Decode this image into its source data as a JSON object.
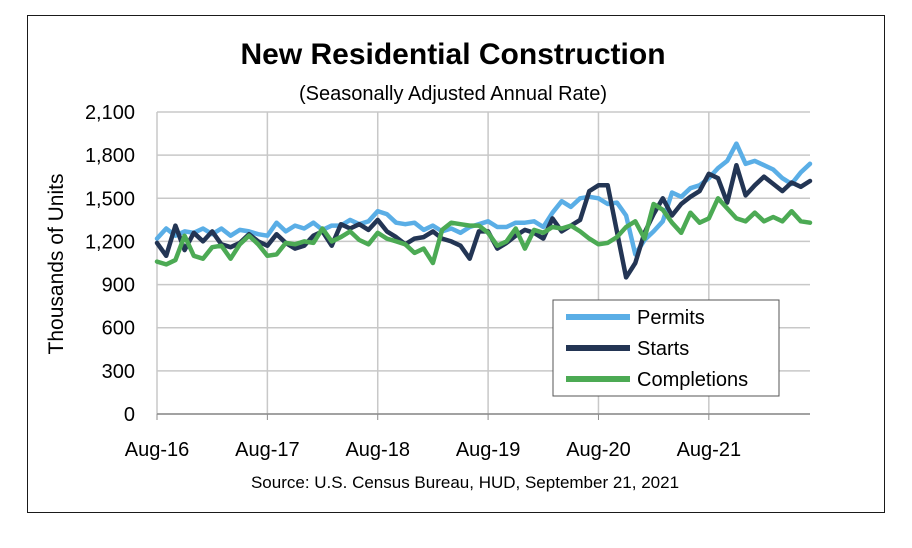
{
  "chart_data": {
    "type": "line",
    "title": "New Residential Construction",
    "subtitle": "(Seasonally Adjusted Annual Rate)",
    "ylabel": "Thousands of Units",
    "source": "Source:  U.S. Census Bureau, HUD, September 21, 2021",
    "ylim": [
      0,
      2100
    ],
    "yticks": [
      0,
      300,
      600,
      900,
      1200,
      1500,
      1800,
      2100
    ],
    "ytick_labels": [
      "0",
      "300",
      "600",
      "900",
      "1,200",
      "1,500",
      "1,800",
      "2,100"
    ],
    "xtick_labels": [
      "Aug-16",
      "Aug-17",
      "Aug-18",
      "Aug-19",
      "Aug-20",
      "Aug-21"
    ],
    "grid": true,
    "legend_position": "bottom-right",
    "series": [
      {
        "name": "Permits",
        "color": "#5aaee6",
        "values": [
          1220,
          1290,
          1240,
          1270,
          1260,
          1290,
          1250,
          1290,
          1240,
          1280,
          1270,
          1250,
          1240,
          1330,
          1270,
          1310,
          1290,
          1330,
          1280,
          1310,
          1310,
          1350,
          1320,
          1340,
          1410,
          1390,
          1330,
          1320,
          1330,
          1280,
          1310,
          1270,
          1290,
          1260,
          1300,
          1320,
          1340,
          1300,
          1300,
          1330,
          1330,
          1340,
          1300,
          1400,
          1480,
          1440,
          1500,
          1510,
          1500,
          1460,
          1470,
          1380,
          1110,
          1210,
          1270,
          1340,
          1540,
          1510,
          1570,
          1590,
          1640,
          1710,
          1760,
          1880,
          1740,
          1760,
          1730,
          1700,
          1640,
          1600,
          1680,
          1740
        ]
      },
      {
        "name": "Starts",
        "color": "#233554",
        "values": [
          1190,
          1100,
          1310,
          1140,
          1260,
          1200,
          1270,
          1180,
          1160,
          1190,
          1250,
          1200,
          1170,
          1250,
          1190,
          1150,
          1170,
          1240,
          1270,
          1170,
          1320,
          1290,
          1320,
          1280,
          1350,
          1270,
          1230,
          1180,
          1220,
          1230,
          1270,
          1220,
          1200,
          1170,
          1080,
          1270,
          1270,
          1150,
          1190,
          1240,
          1280,
          1260,
          1220,
          1360,
          1270,
          1310,
          1350,
          1550,
          1590,
          1590,
          1270,
          950,
          1050,
          1260,
          1390,
          1500,
          1380,
          1460,
          1510,
          1550,
          1670,
          1640,
          1470,
          1730,
          1520,
          1590,
          1650,
          1600,
          1550,
          1610,
          1580,
          1620
        ]
      },
      {
        "name": "Completions",
        "color": "#4caa54",
        "values": [
          1060,
          1040,
          1070,
          1240,
          1100,
          1080,
          1160,
          1170,
          1080,
          1180,
          1240,
          1180,
          1100,
          1110,
          1190,
          1180,
          1200,
          1190,
          1290,
          1200,
          1230,
          1270,
          1210,
          1180,
          1260,
          1220,
          1200,
          1180,
          1120,
          1150,
          1050,
          1280,
          1330,
          1320,
          1310,
          1310,
          1260,
          1170,
          1200,
          1290,
          1150,
          1280,
          1260,
          1300,
          1290,
          1310,
          1270,
          1220,
          1180,
          1190,
          1230,
          1300,
          1340,
          1220,
          1460,
          1420,
          1330,
          1260,
          1400,
          1330,
          1360,
          1500,
          1430,
          1360,
          1340,
          1400,
          1340,
          1370,
          1340,
          1410,
          1340,
          1330
        ]
      }
    ]
  }
}
